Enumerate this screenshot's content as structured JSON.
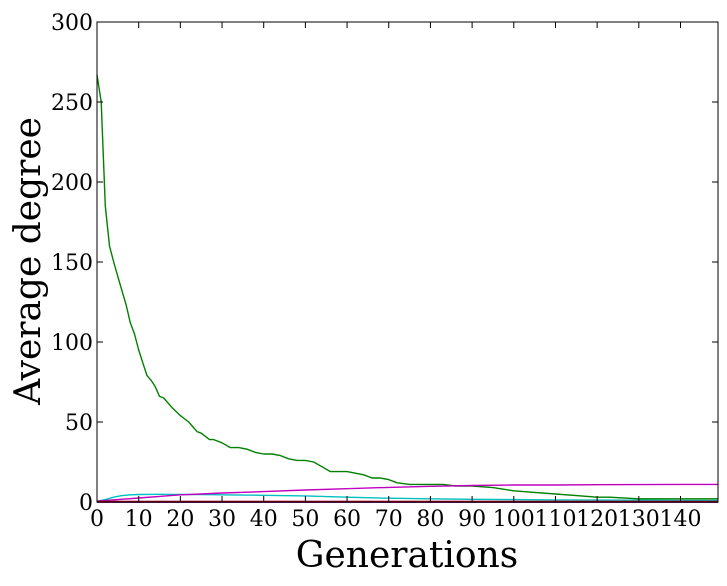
{
  "chart_data": {
    "type": "line",
    "title": "",
    "xlabel": "Generations",
    "ylabel": "Average degree",
    "xlim": [
      0,
      149
    ],
    "ylim": [
      0,
      300
    ],
    "x_ticks": [
      0,
      10,
      20,
      30,
      40,
      50,
      60,
      70,
      80,
      90,
      100,
      110,
      120,
      130,
      140
    ],
    "x_tick_labels": [
      "0",
      "10",
      "20",
      "30",
      "40",
      "50",
      "60",
      "70",
      "80",
      "90",
      "100",
      "110",
      "120",
      "130",
      "140"
    ],
    "y_ticks": [
      0,
      50,
      100,
      150,
      200,
      250,
      300
    ],
    "y_tick_labels": [
      "0",
      "50",
      "100",
      "150",
      "200",
      "250",
      "300"
    ],
    "grid": false,
    "legend": "none",
    "series": [
      {
        "color": "#008000",
        "x": [
          0,
          1,
          2,
          3,
          4,
          5,
          6,
          7,
          8,
          9,
          10,
          11,
          12,
          13,
          14,
          15,
          16,
          18,
          20,
          22,
          24,
          25,
          27,
          28,
          30,
          32,
          34,
          36,
          38,
          40,
          42,
          44,
          46,
          48,
          50,
          52,
          54,
          56,
          58,
          60,
          62,
          64,
          66,
          68,
          70,
          72,
          75,
          78,
          80,
          83,
          86,
          90,
          95,
          100,
          105,
          110,
          115,
          120,
          123,
          130,
          140,
          149
        ],
        "y": [
          267,
          250,
          185,
          160,
          150,
          141,
          132,
          123,
          112,
          105,
          95,
          87,
          79,
          76,
          72,
          66,
          65,
          59,
          54,
          50,
          44,
          43,
          39,
          39,
          37,
          34,
          34,
          33,
          31,
          30,
          30,
          29,
          27,
          26,
          26,
          25,
          22,
          19,
          19,
          19,
          18,
          17,
          15,
          15,
          14,
          12,
          11,
          11,
          11,
          11,
          10,
          10,
          9,
          7,
          6,
          5,
          4,
          3,
          3,
          2,
          2,
          2
        ]
      },
      {
        "color": "#00bfbf",
        "x": [
          0,
          2,
          4,
          6,
          8,
          10,
          15,
          20,
          25,
          30,
          40,
          50,
          60,
          70,
          80,
          90,
          100,
          110,
          120,
          130,
          140,
          149
        ],
        "y": [
          0.5,
          1.5,
          3,
          4,
          4.5,
          4.7,
          4.8,
          4.7,
          4.6,
          4.5,
          4.2,
          3.8,
          3.0,
          2.4,
          2.0,
          1.7,
          1.5,
          1.3,
          1.2,
          1.1,
          1.0,
          1.0
        ]
      },
      {
        "color": "#bf00bf",
        "x": [
          0,
          5,
          10,
          15,
          20,
          25,
          30,
          40,
          50,
          60,
          70,
          80,
          90,
          100,
          110,
          120,
          130,
          140,
          149
        ],
        "y": [
          0.5,
          1.5,
          2.5,
          3.5,
          4.5,
          5,
          5.6,
          6.5,
          7.5,
          8.3,
          9.1,
          9.8,
          10.3,
          10.6,
          10.6,
          10.8,
          10.9,
          11.0,
          11.0
        ]
      },
      {
        "color": "#0000ff",
        "x": [
          0,
          149
        ],
        "y": [
          0.05,
          0.05
        ]
      },
      {
        "color": "#bf0000",
        "x": [
          0,
          149
        ],
        "y": [
          0.15,
          0.15
        ]
      }
    ]
  }
}
